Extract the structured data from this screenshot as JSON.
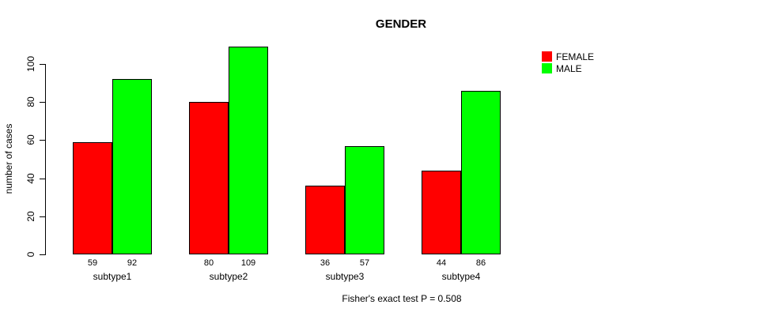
{
  "title": "GENDER",
  "footer_note": "Fisher's exact test P = 0.508",
  "legend": {
    "items": [
      {
        "label": "FEMALE",
        "color": "#ff0000"
      },
      {
        "label": "MALE",
        "color": "#00ff00"
      }
    ]
  },
  "colors": {
    "female": "#ff0000",
    "male": "#00ff00",
    "axis": "#000000",
    "background": "#ffffff"
  },
  "chart_data": {
    "type": "bar",
    "title": "GENDER",
    "xlabel": "",
    "ylabel": "number of cases",
    "categories": [
      "subtype1",
      "subtype2",
      "subtype3",
      "subtype4"
    ],
    "series": [
      {
        "name": "FEMALE",
        "color": "#ff0000",
        "values": [
          59,
          80,
          36,
          44
        ]
      },
      {
        "name": "MALE",
        "color": "#00ff00",
        "values": [
          92,
          109,
          57,
          86
        ]
      }
    ],
    "bar_value_labels": [
      [
        59,
        92
      ],
      [
        80,
        109
      ],
      [
        36,
        57
      ],
      [
        44,
        86
      ]
    ],
    "ylim": [
      0,
      110
    ],
    "yticks": [
      0,
      20,
      40,
      60,
      80,
      100
    ],
    "grid": false,
    "legend_position": "top-right",
    "annotation": "Fisher's exact test P = 0.508"
  }
}
